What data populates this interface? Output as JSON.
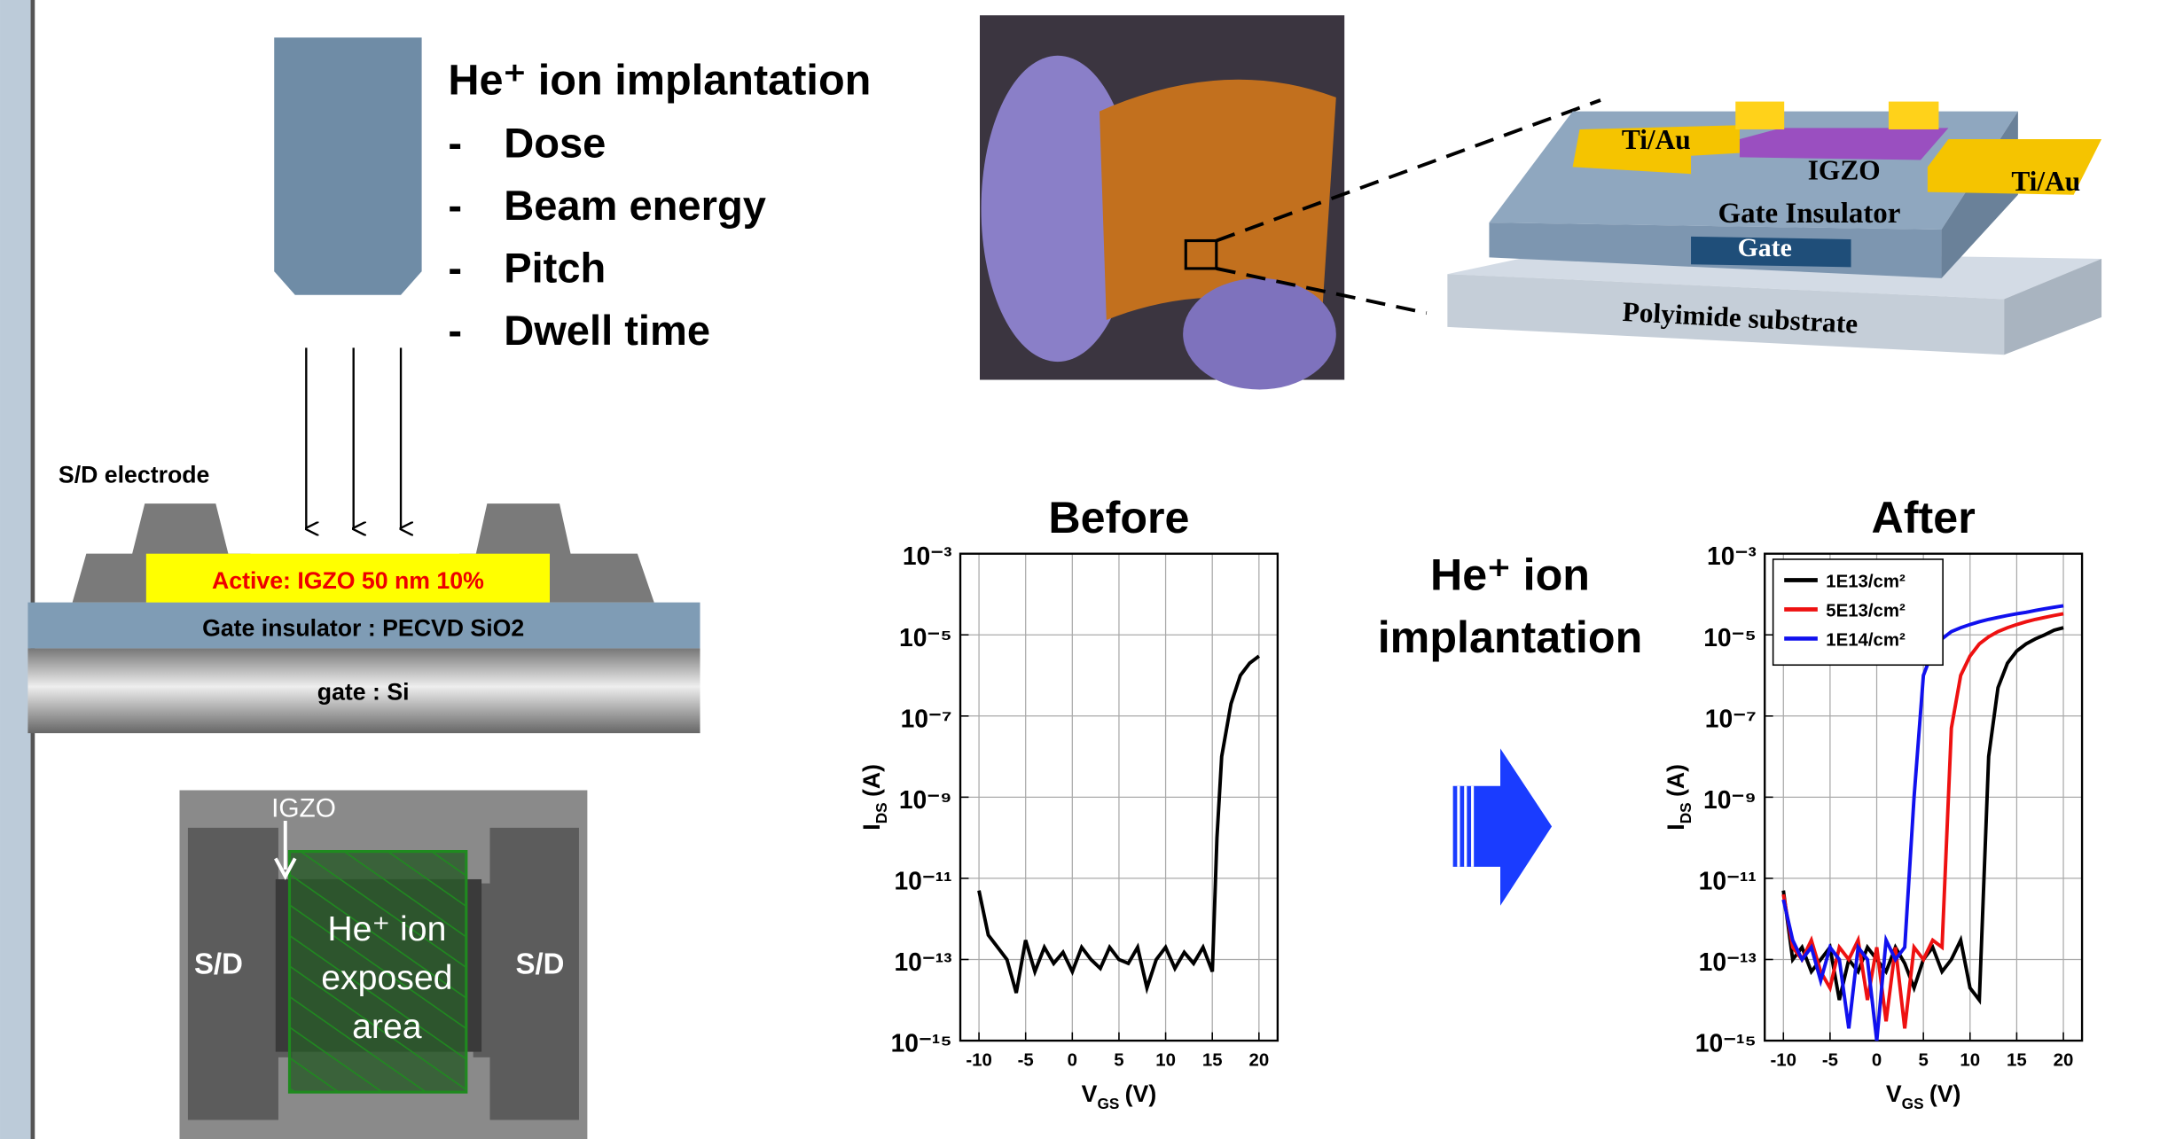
{
  "left_panel": {
    "heading": "He⁺ ion implantation",
    "bullet": "-",
    "items": [
      "Dose",
      "Beam energy",
      "Pitch",
      "Dwell time"
    ],
    "cross_section": {
      "electrode_label": "S/D electrode",
      "active": "Active: IGZO 50 nm 10%",
      "insulator": "Gate insulator : PECVD SiO2",
      "gate": "gate : Si"
    },
    "sem": {
      "igzo": "IGZO",
      "exposed": [
        "He⁺ ion",
        "exposed",
        "area"
      ],
      "source": "S/D",
      "drain": "S/D"
    }
  },
  "device": {
    "contacts": [
      "Ti/Au",
      "Ti/Au"
    ],
    "channel": "IGZO",
    "insulator": "Gate Insulator",
    "gate": "Gate",
    "substrate": "Polyimide substrate"
  },
  "arrow_label": [
    "He⁺ ion",
    "implantation"
  ],
  "chart_data": [
    {
      "type": "line",
      "title": "Before",
      "x_label": {
        "main": "V",
        "sub": "GS",
        "unit": "(V)"
      },
      "y_label": {
        "main": "I",
        "sub": "DS",
        "unit": "(A)"
      },
      "x": [
        -10,
        -9,
        -8,
        -7,
        -6,
        -5,
        -4,
        -3,
        -2,
        -1,
        0,
        1,
        2,
        3,
        4,
        5,
        6,
        7,
        8,
        9,
        10,
        11,
        12,
        13,
        14,
        15,
        15.5,
        16,
        17,
        18,
        19,
        20
      ],
      "series": [
        {
          "color": "#000000",
          "values": [
            5e-12,
            4e-13,
            2e-13,
            1e-13,
            1.5e-14,
            3e-13,
            5e-14,
            2e-13,
            8e-14,
            1.5e-13,
            5e-14,
            2e-13,
            1e-13,
            6e-14,
            2e-13,
            1e-13,
            8e-14,
            2e-13,
            2e-14,
            1e-13,
            2e-13,
            6e-14,
            1.5e-13,
            8e-14,
            2e-13,
            5e-14,
            1e-10,
            1e-08,
            2e-07,
            1e-06,
            2e-06,
            3e-06
          ]
        }
      ],
      "xlim": [
        -12,
        22
      ],
      "ylim": [
        1e-15,
        0.001
      ],
      "log_y": true,
      "grid": true,
      "xticks": [
        -10,
        -5,
        0,
        5,
        10,
        15,
        20
      ],
      "yticks": [
        {
          "value": 1e-15,
          "label": "10⁻¹⁵"
        },
        {
          "value": 1e-13,
          "label": "10⁻¹³"
        },
        {
          "value": 1e-11,
          "label": "10⁻¹¹"
        },
        {
          "value": 1e-09,
          "label": "10⁻⁹"
        },
        {
          "value": 1e-07,
          "label": "10⁻⁷"
        },
        {
          "value": 1e-05,
          "label": "10⁻⁵"
        },
        {
          "value": 0.001,
          "label": "10⁻³"
        }
      ]
    },
    {
      "type": "line",
      "title": "After",
      "x_label": {
        "main": "V",
        "sub": "GS",
        "unit": "(V)"
      },
      "y_label": {
        "main": "I",
        "sub": "DS",
        "unit": "(A)"
      },
      "x": [
        -10,
        -9,
        -8,
        -7,
        -6,
        -5,
        -4,
        -3,
        -2,
        -1,
        0,
        1,
        2,
        3,
        4,
        5,
        6,
        7,
        8,
        9,
        10,
        11,
        12,
        13,
        14,
        15,
        16,
        17,
        18,
        19,
        20
      ],
      "series": [
        {
          "name": "1E13/cm²",
          "color": "#000000",
          "values": [
            5e-12,
            1e-13,
            2e-13,
            5e-14,
            1e-13,
            2e-13,
            1e-14,
            1e-13,
            5e-14,
            2e-13,
            1e-13,
            5e-14,
            2e-13,
            8e-14,
            2e-14,
            1e-13,
            2e-13,
            5e-14,
            1e-13,
            3e-13,
            2e-14,
            1e-14,
            1e-08,
            5e-07,
            2e-06,
            4e-06,
            6e-06,
            8e-06,
            1e-05,
            1.3e-05,
            1.5e-05
          ]
        },
        {
          "name": "5E13/cm²",
          "color": "#ee1111",
          "values": [
            4e-12,
            2e-13,
            1e-13,
            3e-13,
            5e-14,
            2e-14,
            2e-13,
            1e-13,
            3e-13,
            1e-14,
            2e-13,
            3e-15,
            2e-13,
            2e-15,
            2e-13,
            1e-13,
            3e-13,
            2e-13,
            5e-08,
            1e-06,
            3e-06,
            6e-06,
            9e-06,
            1.2e-05,
            1.5e-05,
            1.8e-05,
            2.1e-05,
            2.4e-05,
            2.7e-05,
            3e-05,
            3.3e-05
          ]
        },
        {
          "name": "1E14/cm²",
          "color": "#1111ee",
          "values": [
            3e-12,
            3e-13,
            1e-13,
            2e-13,
            3e-14,
            2e-13,
            1e-13,
            2e-15,
            2e-13,
            1e-13,
            1e-15,
            3e-13,
            1e-13,
            2e-13,
            1e-09,
            1e-06,
            4e-06,
            8e-06,
            1.2e-05,
            1.5e-05,
            1.8e-05,
            2.1e-05,
            2.4e-05,
            2.7e-05,
            3e-05,
            3.3e-05,
            3.6e-05,
            4e-05,
            4.4e-05,
            4.8e-05,
            5.2e-05
          ]
        }
      ],
      "xlim": [
        -12,
        22
      ],
      "ylim": [
        1e-15,
        0.001
      ],
      "log_y": true,
      "grid": true,
      "legend": "upper-left",
      "xticks": [
        -10,
        -5,
        0,
        5,
        10,
        15,
        20
      ],
      "yticks": [
        {
          "value": 1e-15,
          "label": "10⁻¹⁵"
        },
        {
          "value": 1e-13,
          "label": "10⁻¹³"
        },
        {
          "value": 1e-11,
          "label": "10⁻¹¹"
        },
        {
          "value": 1e-09,
          "label": "10⁻⁹"
        },
        {
          "value": 1e-07,
          "label": "10⁻⁷"
        },
        {
          "value": 1e-05,
          "label": "10⁻⁵"
        },
        {
          "value": 0.001,
          "label": "10⁻³"
        }
      ]
    }
  ]
}
